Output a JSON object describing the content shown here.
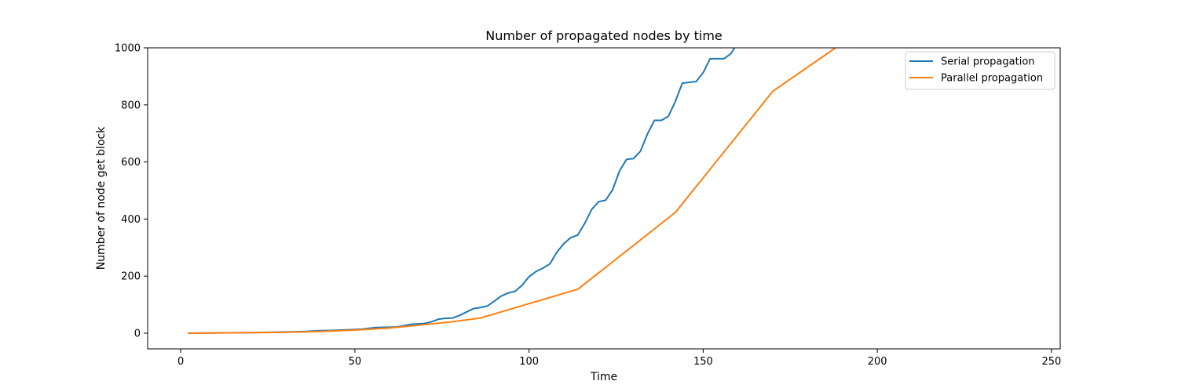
{
  "chart_data": {
    "type": "line",
    "title": "Number of propagated nodes by time",
    "xlabel": "Time",
    "ylabel": "Number of node get block",
    "xlim": [
      -9.5,
      252.5
    ],
    "ylim": [
      -55,
      1000
    ],
    "xticks": [
      0,
      50,
      100,
      150,
      200,
      250
    ],
    "yticks": [
      0,
      200,
      400,
      600,
      800,
      1000
    ],
    "grid": false,
    "legend_position": "top-right",
    "series": [
      {
        "name": "Serial propagation",
        "color": "#1f77b4",
        "x": [
          2,
          10,
          20,
          30,
          36,
          40,
          44,
          48,
          52,
          56,
          60,
          62,
          64,
          66,
          70,
          72,
          74,
          76,
          78,
          80,
          82,
          84,
          86,
          88,
          90,
          92,
          94,
          96,
          98,
          100,
          102,
          104,
          106,
          108,
          110,
          112,
          114,
          116,
          118,
          120,
          122,
          124,
          126,
          128,
          130,
          132,
          134,
          136,
          138,
          140,
          142,
          144,
          146,
          148,
          150,
          152,
          154,
          156,
          158,
          159
        ],
        "y": [
          0,
          1,
          2,
          4,
          6,
          9,
          10,
          12,
          14,
          20,
          21,
          22,
          26,
          31,
          34,
          40,
          49,
          52,
          53,
          62,
          74,
          86,
          90,
          95,
          112,
          130,
          141,
          147,
          168,
          198,
          216,
          228,
          243,
          284,
          314,
          335,
          344,
          385,
          434,
          461,
          466,
          503,
          569,
          609,
          612,
          638,
          698,
          746,
          746,
          760,
          812,
          876,
          879,
          882,
          913,
          962,
          962,
          962,
          980,
          1000
        ]
      },
      {
        "name": "Parallel propagation",
        "color": "#ff7f0e",
        "x": [
          2,
          30,
          40,
          50,
          60,
          70,
          78,
          86,
          114,
          142,
          170,
          188
        ],
        "y": [
          0,
          3,
          6,
          11,
          18,
          30,
          40,
          53,
          154,
          423,
          848,
          1000
        ]
      }
    ]
  }
}
